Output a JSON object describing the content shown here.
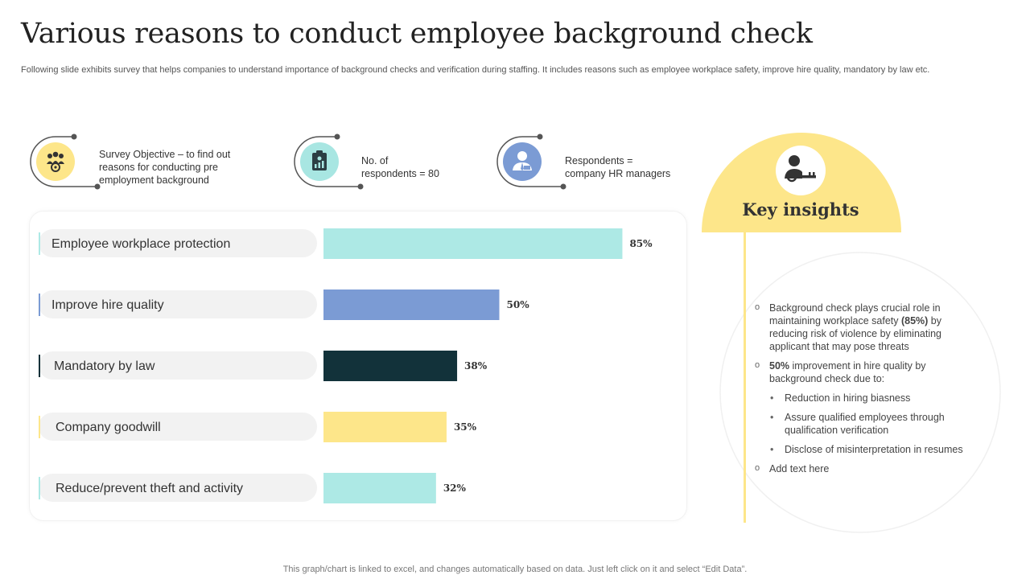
{
  "page": {
    "title": "Various reasons to conduct employee background check",
    "subtitle": "Following slide exhibits survey that helps companies to understand importance of background checks and verification during staffing. It includes reasons such as employee workplace safety, improve hire quality, mandatory by law etc.",
    "footer": "This graph/chart is linked to excel, and changes automatically based on data. Just left click on it and select “Edit Data”."
  },
  "survey_info": [
    {
      "text": "Survey Objective – to find out\nreasons for conducting pre\nemployment background",
      "icon": "people-gear-icon",
      "color": "#fde68a"
    },
    {
      "text": "No. of\nrespondents = 80",
      "icon": "clipboard-chart-icon",
      "color": "#a8e6e2"
    },
    {
      "text": "Respondents =\ncompany HR managers",
      "icon": "manager-icon",
      "color": "#7b9bd4"
    }
  ],
  "chart_data": {
    "type": "bar",
    "orientation": "horizontal",
    "categories": [
      "Employee workplace protection",
      "Improve hire quality",
      "Mandatory by law",
      "Company goodwill",
      "Reduce/prevent theft and activity"
    ],
    "values": [
      85,
      50,
      38,
      35,
      32
    ],
    "value_labels": [
      "85%",
      "50%",
      "38%",
      "35%",
      "32%"
    ],
    "colors": [
      "#ade9e5",
      "#7b9bd4",
      "#12323a",
      "#fde68a",
      "#ade9e5"
    ],
    "xlim": [
      0,
      100
    ],
    "grid": false
  },
  "key_insights": {
    "title": "Key insights",
    "icon": "person-key-icon",
    "items": [
      {
        "prefix": "",
        "bold": "",
        "text": "Background check plays crucial role in maintaining workplace safety ",
        "bold_after": "(85%)",
        "suffix": " by reducing risk of violence by eliminating applicant that may pose threats"
      },
      {
        "prefix": "",
        "bold": "50%",
        "text": " improvement in hire quality by background check due to:"
      }
    ],
    "sub_items": [
      "Reduction in hiring biasness",
      "Assure qualified employees through qualification verification",
      "Disclose of misinterpretation in resumes"
    ],
    "last_item": "Add text here"
  },
  "colors": {
    "accent_yellow": "#fde68a",
    "accent_teal": "#ade9e5",
    "accent_blue": "#7b9bd4",
    "dark": "#12323a"
  }
}
